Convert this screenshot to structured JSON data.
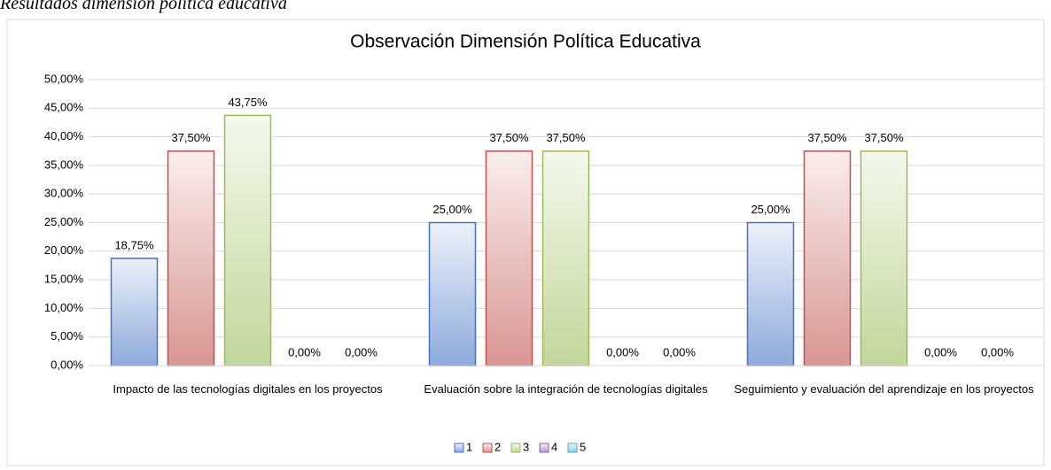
{
  "caption": "Resultados dimensión política educativa",
  "chart_data": {
    "type": "bar",
    "title": "Observación Dimensión Política Educativa",
    "categories": [
      "Impacto de las tecnologías digitales en los proyectos",
      "Evaluación sobre la integración de tecnologías digitales",
      "Seguimiento y evaluación del aprendizaje en los proyectos"
    ],
    "series": [
      {
        "name": "1",
        "color": "#4472c4",
        "values": [
          18.75,
          25,
          25
        ],
        "value_labels": [
          "18,75%",
          "25,00%",
          "25,00%"
        ]
      },
      {
        "name": "2",
        "color": "#c0504d",
        "values": [
          37.5,
          37.5,
          37.5
        ],
        "value_labels": [
          "37,50%",
          "37,50%",
          "37,50%"
        ]
      },
      {
        "name": "3",
        "color": "#9bbb59",
        "values": [
          43.75,
          37.5,
          37.5
        ],
        "value_labels": [
          "43,75%",
          "37,50%",
          "37,50%"
        ]
      },
      {
        "name": "4",
        "color": "#8064a2",
        "values": [
          0,
          0,
          0
        ],
        "value_labels": [
          "0,00%",
          "0,00%",
          "0,00%"
        ]
      },
      {
        "name": "5",
        "color": "#4bacc6",
        "values": [
          0,
          0,
          0
        ],
        "value_labels": [
          "0,00%",
          "0,00%",
          "0,00%"
        ]
      }
    ],
    "ylim": [
      0,
      50
    ],
    "yticks": [
      {
        "value": 0,
        "label": "0,00%"
      },
      {
        "value": 5,
        "label": "5,00%"
      },
      {
        "value": 10,
        "label": "10,00%"
      },
      {
        "value": 15,
        "label": "15,00%"
      },
      {
        "value": 20,
        "label": "20,00%"
      },
      {
        "value": 25,
        "label": "25,00%"
      },
      {
        "value": 30,
        "label": "30,00%"
      },
      {
        "value": 35,
        "label": "35,00%"
      },
      {
        "value": 40,
        "label": "40,00%"
      },
      {
        "value": 45,
        "label": "45,00%"
      },
      {
        "value": 50,
        "label": "50,00%"
      }
    ],
    "grid": true,
    "legend": "bottom"
  }
}
